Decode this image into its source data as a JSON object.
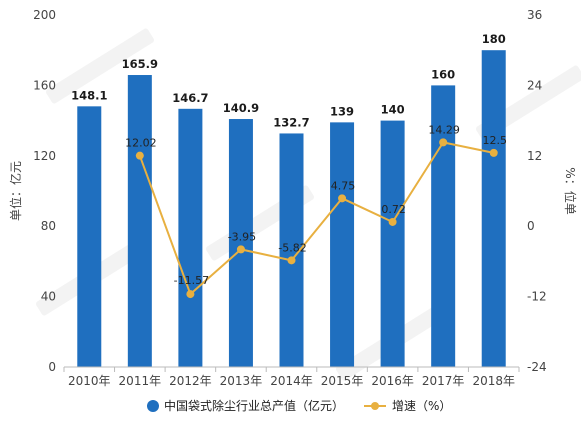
{
  "chart_data": {
    "type": "bar",
    "categories": [
      "2010年",
      "2011年",
      "2012年",
      "2013年",
      "2014年",
      "2015年",
      "2016年",
      "2017年",
      "2018年"
    ],
    "series": [
      {
        "name": "中国袋式除尘行业总产值（亿元）",
        "type": "bar",
        "axis": "left",
        "color": "#1f6fbf",
        "values": [
          148.1,
          165.9,
          146.7,
          140.9,
          132.7,
          139,
          140,
          160,
          180
        ],
        "labels": [
          "148.1",
          "165.9",
          "146.7",
          "140.9",
          "132.7",
          "139",
          "140",
          "160",
          "180"
        ]
      },
      {
        "name": "增速（%）",
        "type": "line",
        "axis": "right",
        "color": "#e8b040",
        "values": [
          null,
          12.02,
          -11.57,
          -3.95,
          -5.82,
          4.75,
          0.72,
          14.29,
          12.5
        ],
        "labels": [
          "",
          "12.02",
          "-11.57",
          "-3.95",
          "-5.82",
          "4.75",
          "0.72",
          "14.29",
          "12.5"
        ]
      }
    ],
    "ylabel": "单位：亿元",
    "y2label": "%：位单",
    "ylim": [
      0,
      200
    ],
    "yticks": [
      "0",
      "40",
      "80",
      "120",
      "160",
      "200"
    ],
    "y2lim": [
      -24,
      36
    ],
    "y2ticks": [
      "-24",
      "-12",
      "0",
      "12",
      "24",
      "36"
    ],
    "grid": false,
    "legend_position": "bottom"
  }
}
